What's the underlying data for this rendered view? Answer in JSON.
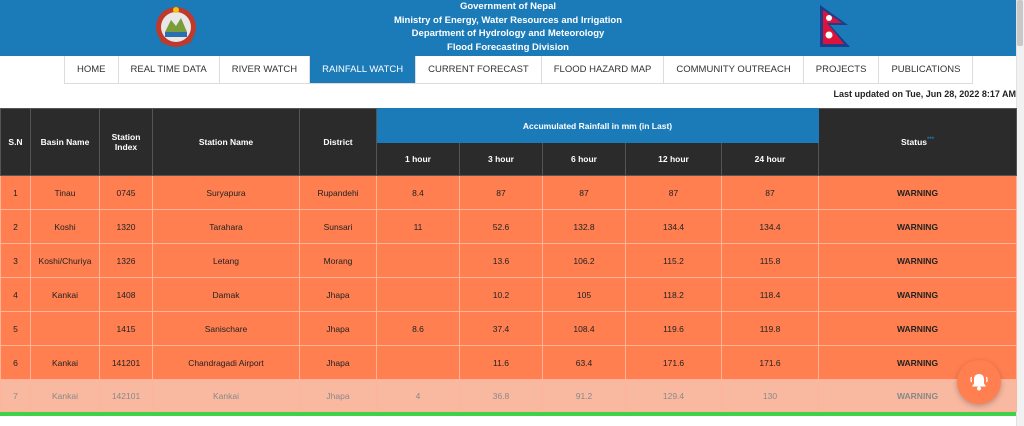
{
  "header": {
    "line1": "Government of Nepal",
    "line2": "Ministry of Energy, Water Resources and Irrigation",
    "line3": "Department of Hydrology and Meteorology",
    "line4": "Flood Forecasting Division",
    "emblem_icon": "nepal-emblem-icon",
    "flag_icon": "nepal-flag-icon",
    "bar_color": "#1b7bb8"
  },
  "nav": {
    "items": [
      "HOME",
      "REAL TIME DATA",
      "RIVER WATCH",
      "RAINFALL WATCH",
      "CURRENT FORECAST",
      "FLOOD HAZARD MAP",
      "COMMUNITY OUTREACH",
      "PROJECTS",
      "PUBLICATIONS"
    ],
    "active": "RAINFALL WATCH"
  },
  "last_updated": "Last updated on Tue, Jun 28, 2022 8:17 AM",
  "table": {
    "headers": {
      "sn": "S.N",
      "basin": "Basin Name",
      "station_index": "Station Index",
      "station_name": "Station Name",
      "district": "District",
      "accumulated": "Accumulated Rainfall in mm (in Last)",
      "h1": "1 hour",
      "h3": "3 hour",
      "h6": "6 hour",
      "h12": "12 hour",
      "h24": "24 hour",
      "status": "Status",
      "status_marker": "***"
    },
    "rows": [
      {
        "sn": "1",
        "basin": "Tinau",
        "index": "0745",
        "station": "Suryapura",
        "district": "Rupandehi",
        "h1": "8.4",
        "h3": "87",
        "h6": "87",
        "h12": "87",
        "h24": "87",
        "status": "WARNING"
      },
      {
        "sn": "2",
        "basin": "Koshi",
        "index": "1320",
        "station": "Tarahara",
        "district": "Sunsari",
        "h1": "11",
        "h3": "52.6",
        "h6": "132.8",
        "h12": "134.4",
        "h24": "134.4",
        "status": "WARNING"
      },
      {
        "sn": "3",
        "basin": "Koshi/Churiya",
        "index": "1326",
        "station": "Letang",
        "district": "Morang",
        "h1": "",
        "h3": "13.6",
        "h6": "106.2",
        "h12": "115.2",
        "h24": "115.8",
        "status": "WARNING"
      },
      {
        "sn": "4",
        "basin": "Kankai",
        "index": "1408",
        "station": "Damak",
        "district": "Jhapa",
        "h1": "",
        "h3": "10.2",
        "h6": "105",
        "h12": "118.2",
        "h24": "118.4",
        "status": "WARNING"
      },
      {
        "sn": "5",
        "basin": "",
        "index": "1415",
        "station": "Sanischare",
        "district": "Jhapa",
        "h1": "8.6",
        "h3": "37.4",
        "h6": "108.4",
        "h12": "119.6",
        "h24": "119.8",
        "status": "WARNING"
      },
      {
        "sn": "6",
        "basin": "Kankai",
        "index": "141201",
        "station": "Chandragadi Airport",
        "district": "Jhapa",
        "h1": "",
        "h3": "11.6",
        "h6": "63.4",
        "h12": "171.6",
        "h24": "171.6",
        "status": "WARNING"
      },
      {
        "sn": "7",
        "basin": "Kankai",
        "index": "142101",
        "station": "Kankai",
        "district": "Jhapa",
        "h1": "4",
        "h3": "36.8",
        "h6": "91.2",
        "h12": "129.4",
        "h24": "130",
        "status": "WARNING"
      }
    ]
  },
  "colors": {
    "warning_row": "#ff7f50",
    "header_dark": "#2b2b2b",
    "accent_blue": "#1b7bb8",
    "green_bar": "#3fd14a"
  },
  "fab": {
    "icon": "bell-icon"
  }
}
